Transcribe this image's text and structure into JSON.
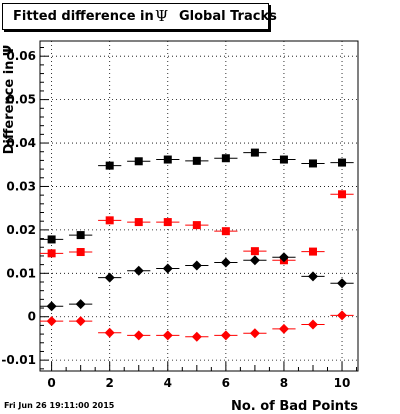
{
  "title": {
    "prefix": "Fitted difference in",
    "symbol": "Ψ",
    "suffix": "Global Tracks"
  },
  "footer_timestamp": "Fri Jun 26 19:11:00 2015",
  "chart_data": {
    "type": "scatter",
    "xlabel": "No. of Bad Points",
    "ylabel": "Difference in Ψ",
    "xlim": [
      -0.4,
      10.55
    ],
    "ylim": [
      -0.0125,
      0.0635
    ],
    "xticks": [
      0,
      2,
      4,
      6,
      8,
      10
    ],
    "yticks": [
      -0.01,
      0,
      0.01,
      0.02,
      0.03,
      0.04,
      0.05,
      0.06
    ],
    "ytick_labels": [
      "-0.01",
      "0",
      "0.01",
      "0.02",
      "0.03",
      "0.04",
      "0.05",
      "0.06"
    ],
    "grid": true,
    "x": [
      0,
      1,
      2,
      3,
      4,
      5,
      6,
      7,
      8,
      9,
      10
    ],
    "series": [
      {
        "color": "#000000",
        "marker": "square",
        "values": [
          0.0178,
          0.0188,
          0.0348,
          0.0358,
          0.0362,
          0.0359,
          0.0365,
          0.0378,
          0.0362,
          0.0353,
          0.0355
        ]
      },
      {
        "color": "#ff0000",
        "marker": "square",
        "values": [
          0.0146,
          0.0149,
          0.0222,
          0.0218,
          0.0218,
          0.0211,
          0.0197,
          0.0151,
          0.013,
          0.015,
          0.0282
        ]
      },
      {
        "color": "#000000",
        "marker": "diamond",
        "values": [
          0.0024,
          0.0029,
          0.009,
          0.0106,
          0.0111,
          0.0118,
          0.0125,
          0.013,
          0.0137,
          0.0093,
          0.0077
        ]
      },
      {
        "color": "#ff0000",
        "marker": "diamond",
        "values": [
          -0.001,
          -0.001,
          -0.0037,
          -0.0043,
          -0.0043,
          -0.0046,
          -0.0043,
          -0.0038,
          -0.0028,
          -0.0018,
          0.0003
        ]
      }
    ]
  }
}
